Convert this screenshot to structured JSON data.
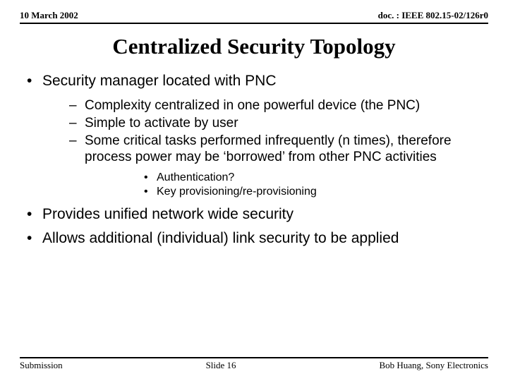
{
  "colors": {
    "text": "#000000",
    "background": "#ffffff",
    "rule": "#000000"
  },
  "header": {
    "left": "10 March 2002",
    "right": "doc. : IEEE 802.15-02/126r0"
  },
  "title": "Centralized Security Topology",
  "bullets": {
    "l1a": "Security manager located with PNC",
    "l2a": "Complexity centralized in one powerful device (the PNC)",
    "l2b": "Simple to activate by user",
    "l2c": "Some critical tasks performed infrequently (n times), therefore process power may be ‘borrowed’ from other PNC activities",
    "l3a": "Authentication?",
    "l3b": "Key provisioning/re-provisioning",
    "l1b": "Provides unified network wide security",
    "l1c": "Allows additional (individual) link security to be applied"
  },
  "footer": {
    "left": "Submission",
    "center": "Slide 16",
    "right": "Bob Huang, Sony Electronics"
  }
}
